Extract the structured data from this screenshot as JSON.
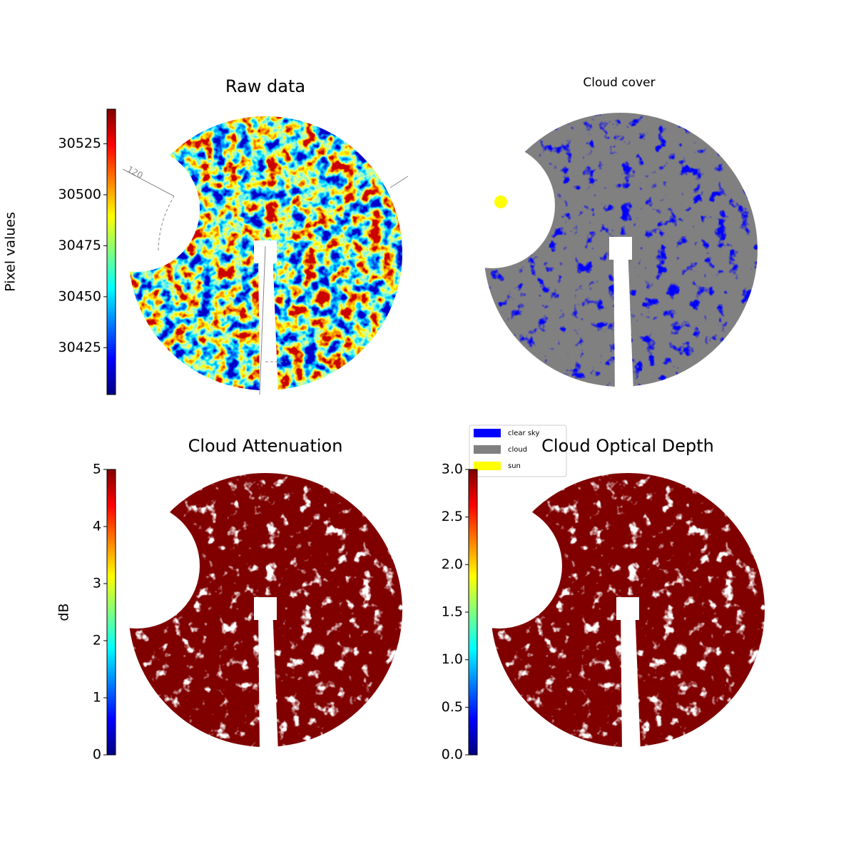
{
  "chart_data": [
    {
      "type": "raw-image",
      "title": "Raw data",
      "annotation": "120",
      "colormap": "jet",
      "ylabel": "Pixel values",
      "ylim": [
        30402,
        30542
      ],
      "yticks": [
        30425,
        30450,
        30475,
        30500,
        30525
      ]
    },
    {
      "type": "cloud-mask",
      "title": "Cloud cover",
      "series": [
        {
          "name": "clear sky",
          "color": "#0000ff"
        },
        {
          "name": "cloud",
          "color": "#808080"
        },
        {
          "name": "sun",
          "color": "#ffff00"
        }
      ]
    },
    {
      "type": "masked-image",
      "title": "Cloud Attenuation",
      "colormap": "jet",
      "ylabel": "dB",
      "ylim": [
        0,
        5
      ],
      "yticks": [
        0,
        1,
        2,
        3,
        4,
        5
      ]
    },
    {
      "type": "masked-image",
      "title": "Cloud Optical Depth",
      "colormap": "jet",
      "ylim": [
        0,
        3
      ],
      "yticks": [
        {
          "value": 0,
          "label": "0.0"
        },
        0.5,
        {
          "value": 1,
          "label": "1.0"
        },
        1.5,
        {
          "value": 2,
          "label": "2.0"
        },
        2.5,
        {
          "value": 3,
          "label": "3.0"
        }
      ]
    }
  ]
}
